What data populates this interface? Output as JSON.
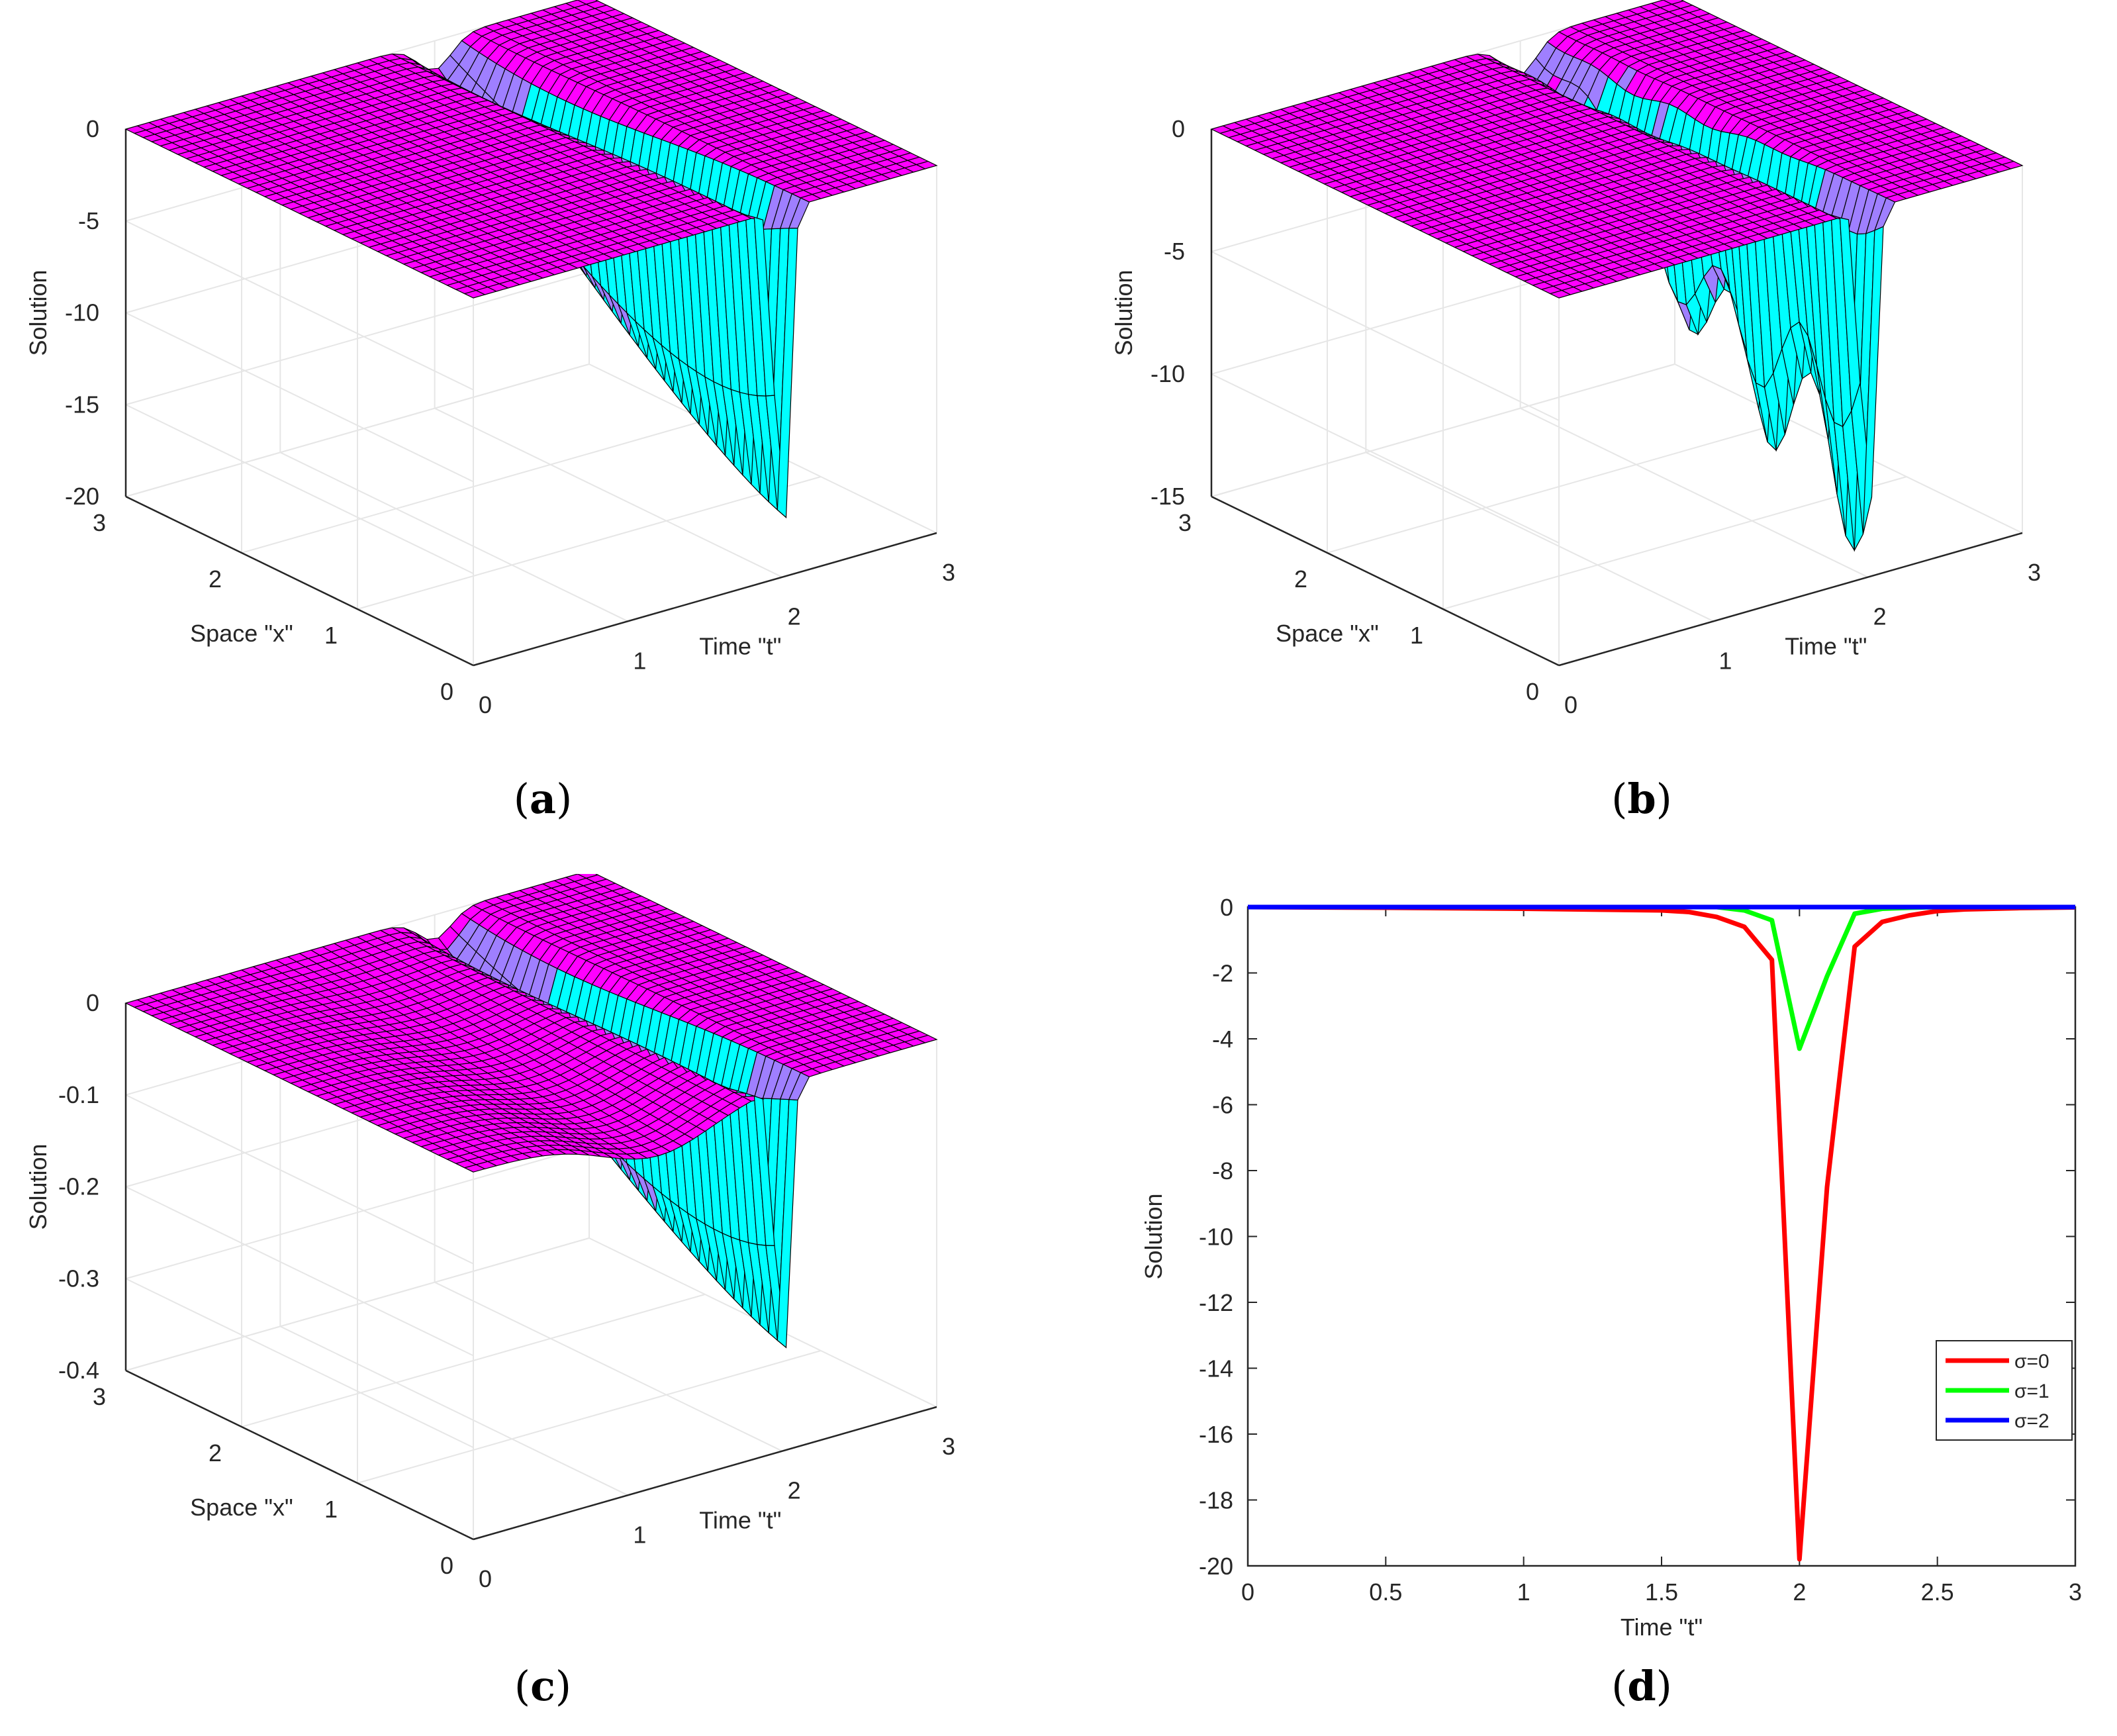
{
  "captions": [
    "a",
    "b",
    "c",
    "d"
  ],
  "colors": {
    "surface": "#ff00ff",
    "cyan": "#00ffff",
    "violet": "#9f7fff",
    "grid": "#e6e6e6",
    "axis": "#262626"
  },
  "chart_data": [
    {
      "type": "surface3d",
      "title": "",
      "xlabel": "Time \"t\"",
      "ylabel": "Space \"x\"",
      "zlabel": "Solution",
      "x_ticks": [
        "0",
        "1",
        "2",
        "3"
      ],
      "y_ticks": [
        "0",
        "1",
        "2",
        "3"
      ],
      "z_ticks": [
        "0",
        "-5",
        "-10",
        "-15",
        "-20"
      ],
      "xlim": [
        0,
        3
      ],
      "ylim": [
        0,
        3
      ],
      "zlim": [
        -20,
        0
      ],
      "trough": {
        "t": 2.0,
        "min": -20
      }
    },
    {
      "type": "surface3d",
      "title": "",
      "xlabel": "Time \"t\"",
      "ylabel": "Space \"x\"",
      "zlabel": "Solution",
      "x_ticks": [
        "0",
        "1",
        "2",
        "3"
      ],
      "y_ticks": [
        "0",
        "1",
        "2",
        "3"
      ],
      "z_ticks": [
        "0",
        "-5",
        "-10",
        "-15"
      ],
      "xlim": [
        0,
        3
      ],
      "ylim": [
        0,
        3
      ],
      "zlim": [
        -15,
        0
      ],
      "trough": {
        "t": 2.0,
        "min": -14
      }
    },
    {
      "type": "surface3d",
      "title": "",
      "xlabel": "Time \"t\"",
      "ylabel": "Space \"x\"",
      "zlabel": "Solution",
      "x_ticks": [
        "0",
        "1",
        "2",
        "3"
      ],
      "y_ticks": [
        "0",
        "1",
        "2",
        "3"
      ],
      "z_ticks": [
        "0",
        "-0.1",
        "-0.2",
        "-0.3",
        "-0.4"
      ],
      "xlim": [
        0,
        3
      ],
      "ylim": [
        0,
        3
      ],
      "zlim": [
        -0.4,
        0
      ],
      "trough": {
        "t": 2.0,
        "min": -0.34
      }
    },
    {
      "type": "line",
      "title": "",
      "xlabel": "Time \"t\"",
      "ylabel": "Solution",
      "xlim": [
        0,
        3
      ],
      "ylim": [
        -20,
        0
      ],
      "x_ticks": [
        "0",
        "0.5",
        "1",
        "1.5",
        "2",
        "2.5",
        "3"
      ],
      "y_ticks": [
        "0",
        "-2",
        "-4",
        "-6",
        "-8",
        "-10",
        "-12",
        "-14",
        "-16",
        "-18",
        "-20"
      ],
      "legend_position": "right",
      "x": [
        0,
        0.5,
        1.0,
        1.5,
        1.6,
        1.7,
        1.8,
        1.9,
        2.0,
        2.1,
        2.2,
        2.3,
        2.4,
        2.5,
        2.6,
        2.8,
        3.0
      ],
      "series": [
        {
          "name": "σ=0",
          "color": "#ff0000",
          "values": [
            0,
            -0.02,
            -0.05,
            -0.1,
            -0.15,
            -0.3,
            -0.6,
            -1.6,
            -19.8,
            -8.5,
            -1.2,
            -0.45,
            -0.25,
            -0.12,
            -0.07,
            -0.03,
            -0.01
          ]
        },
        {
          "name": "σ=1",
          "color": "#00ff00",
          "values": [
            0,
            0,
            0,
            0,
            0,
            0,
            -0.1,
            -0.4,
            -4.3,
            -2.1,
            -0.2,
            -0.05,
            -0.02,
            0,
            0,
            0,
            0
          ]
        },
        {
          "name": "σ=2",
          "color": "#0000ff",
          "values": [
            0,
            0,
            0,
            0,
            0,
            0,
            0,
            0,
            0,
            0,
            0,
            0,
            0,
            0,
            0,
            0,
            0
          ]
        }
      ]
    }
  ]
}
